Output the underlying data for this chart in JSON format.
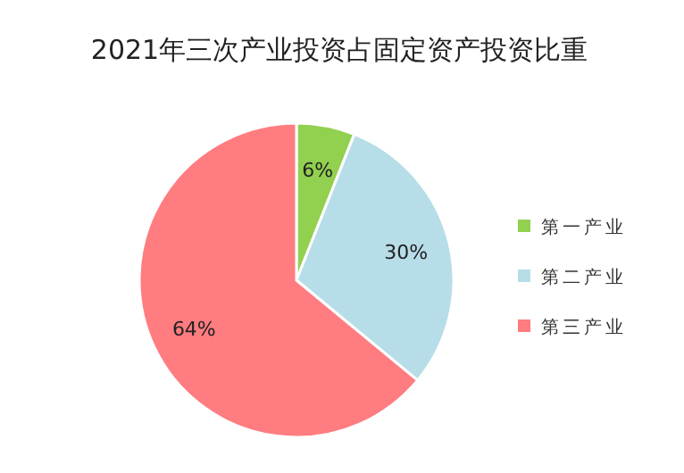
{
  "chart_data": {
    "type": "pie",
    "title": "2021年三次产业投资占固定资产投资比重",
    "categories": [
      "第一产业",
      "第二产业",
      "第三产业"
    ],
    "values": [
      6,
      30,
      64
    ],
    "colors": [
      "#92d050",
      "#b7dde8",
      "#ff7c80"
    ],
    "value_labels": [
      "6%",
      "30%",
      "64%"
    ],
    "legend": "right"
  }
}
